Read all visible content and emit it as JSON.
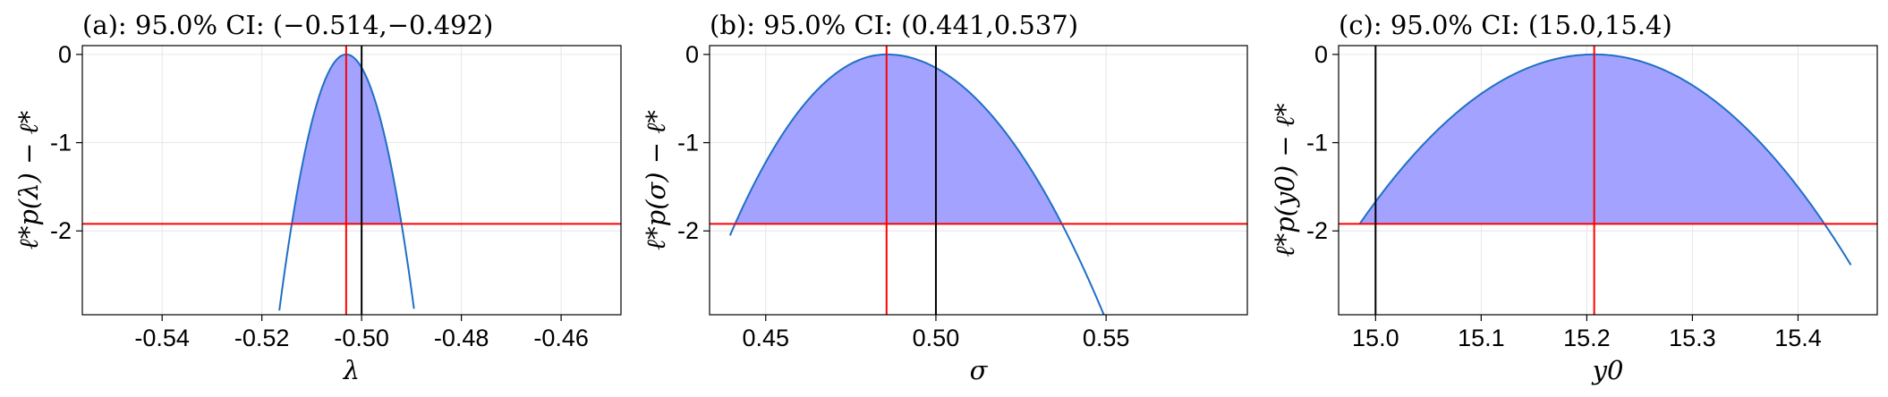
{
  "colors": {
    "fill": "#a3a3ff",
    "curve": "#1f6fc5",
    "threshold": "#ff0000",
    "mle": "#ff0000",
    "truth": "#000000",
    "grid": "#e6e6e6"
  },
  "chart_data": [
    {
      "type": "area",
      "title": "(a): 95.0% CI: (−0.514,−0.492)",
      "xlabel": "λ",
      "ylabel": "ℓ*p(λ) − ℓ*",
      "xlim": [
        -0.556,
        -0.448
      ],
      "ylim": [
        -2.95,
        0.1
      ],
      "x_ticks": [
        -0.54,
        -0.52,
        -0.5,
        -0.48,
        -0.46
      ],
      "x_tick_labels": [
        "-0.54",
        "-0.52",
        "-0.50",
        "-0.48",
        "-0.46"
      ],
      "y_ticks": [
        0,
        -1,
        -2
      ],
      "y_tick_labels": [
        "0",
        "-1",
        "-2"
      ],
      "mle": -0.5031,
      "true_value": -0.5,
      "threshold": -1.92,
      "ci": [
        -0.514,
        -0.492
      ],
      "curve_range": [
        -0.5165,
        -0.4895
      ],
      "grid": true
    },
    {
      "type": "area",
      "title": "(b): 95.0% CI: (0.441,0.537)",
      "xlabel": "σ",
      "ylabel": "ℓ*p(σ) − ℓ*",
      "xlim": [
        0.4335,
        0.5915
      ],
      "ylim": [
        -2.95,
        0.1
      ],
      "x_ticks": [
        0.45,
        0.5,
        0.55
      ],
      "x_tick_labels": [
        "0.45",
        "0.50",
        "0.55"
      ],
      "y_ticks": [
        0,
        -1,
        -2
      ],
      "y_tick_labels": [
        "0",
        "-1",
        "-2"
      ],
      "mle": 0.4855,
      "true_value": 0.5,
      "threshold": -1.92,
      "ci": [
        0.441,
        0.537
      ],
      "curve_range": [
        0.4395,
        0.5495
      ],
      "grid": true
    },
    {
      "type": "area",
      "title": "(c): 95.0% CI: (15.0,15.4)",
      "xlabel": "y0",
      "ylabel": "ℓ*p(y0) − ℓ*",
      "xlim": [
        14.965,
        15.475
      ],
      "ylim": [
        -2.95,
        0.1
      ],
      "x_ticks": [
        15.0,
        15.1,
        15.2,
        15.3,
        15.4
      ],
      "x_tick_labels": [
        "15.0",
        "15.1",
        "15.2",
        "15.3",
        "15.4"
      ],
      "y_ticks": [
        0,
        -1,
        -2
      ],
      "y_tick_labels": [
        "0",
        "-1",
        "-2"
      ],
      "mle": 15.207,
      "true_value": 15.0,
      "threshold": -1.92,
      "ci": [
        14.985,
        15.425
      ],
      "curve_range": [
        14.985,
        15.45
      ],
      "grid": true
    }
  ]
}
